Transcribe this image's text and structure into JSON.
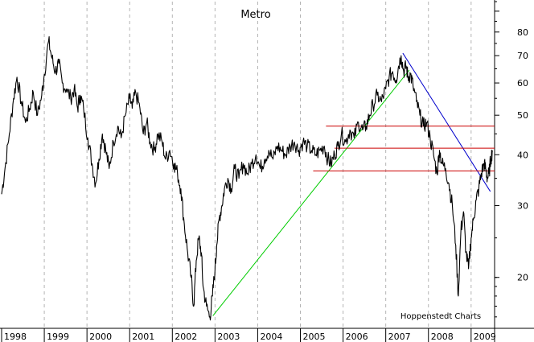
{
  "chart_data": {
    "type": "line",
    "title": "Metro",
    "source": "Hoppenstedt Charts",
    "y_scale": "log",
    "ylim": [
      15,
      95
    ],
    "y_ticks": [
      20,
      30,
      40,
      50,
      60,
      70,
      80
    ],
    "x_range": [
      1998.0,
      2009.55
    ],
    "x_labels": [
      "1998",
      "1999",
      "2000",
      "2001",
      "2002",
      "2003",
      "2004",
      "2005",
      "2006",
      "2007",
      "2008",
      "2009"
    ],
    "grid": {
      "vertical_dashed": true
    },
    "colors": {
      "price": "#000000",
      "uptrend": "#00cc00",
      "downtrend": "#0000cc",
      "resistance": "#cc0000",
      "grid": "#b4b4b4"
    },
    "series": [
      {
        "name": "Metro",
        "x": [
          1998.0,
          1998.08,
          1998.18,
          1998.28,
          1998.36,
          1998.46,
          1998.56,
          1998.66,
          1998.74,
          1998.84,
          1998.94,
          1999.0,
          1999.1,
          1999.18,
          1999.26,
          1999.34,
          1999.42,
          1999.52,
          1999.62,
          1999.7,
          1999.78,
          1999.84,
          1999.92,
          2000.02,
          2000.12,
          2000.2,
          2000.28,
          2000.36,
          2000.44,
          2000.52,
          2000.62,
          2000.72,
          2000.8,
          2000.9,
          2001.0,
          2001.06,
          2001.14,
          2001.24,
          2001.32,
          2001.4,
          2001.48,
          2001.58,
          2001.66,
          2001.76,
          2001.84,
          2001.94,
          2002.04,
          2002.12,
          2002.2,
          2002.28,
          2002.36,
          2002.44,
          2002.5,
          2002.56,
          2002.62,
          2002.68,
          2002.72,
          2002.8,
          2002.88,
          2002.94,
          2003.0,
          2003.04,
          2003.1,
          2003.16,
          2003.22,
          2003.3,
          2003.38,
          2003.46,
          2003.56,
          2003.66,
          2003.76,
          2003.86,
          2003.96,
          2004.06,
          2004.16,
          2004.26,
          2004.36,
          2004.46,
          2004.56,
          2004.66,
          2004.76,
          2004.86,
          2004.96,
          2005.06,
          2005.16,
          2005.26,
          2005.36,
          2005.46,
          2005.56,
          2005.64,
          2005.72,
          2005.8,
          2005.88,
          2005.96,
          2006.06,
          2006.16,
          2006.26,
          2006.36,
          2006.46,
          2006.54,
          2006.62,
          2006.7,
          2006.8,
          2006.9,
          2007.0,
          2007.08,
          2007.16,
          2007.24,
          2007.3,
          2007.36,
          2007.42,
          2007.48,
          2007.52,
          2007.58,
          2007.64,
          2007.72,
          2007.8,
          2007.88,
          2007.96,
          2008.04,
          2008.12,
          2008.2,
          2008.26,
          2008.32,
          2008.4,
          2008.48,
          2008.56,
          2008.64,
          2008.7,
          2008.76,
          2008.82,
          2008.88,
          2008.94,
          2009.0,
          2009.06,
          2009.12,
          2009.18,
          2009.24,
          2009.3,
          2009.34,
          2009.38,
          2009.42,
          2009.46,
          2009.5
        ],
        "y": [
          32,
          37,
          45,
          55,
          62,
          54,
          48,
          52,
          57,
          50,
          56,
          63,
          76,
          69,
          64,
          67,
          60,
          58,
          55,
          58,
          52,
          56,
          52,
          44,
          38,
          34,
          39,
          45,
          41,
          37,
          43,
          47,
          44,
          50,
          55,
          52,
          57,
          52,
          45,
          48,
          43,
          41,
          45,
          43,
          39,
          41,
          38,
          36,
          33,
          27,
          23,
          20,
          17,
          22,
          25,
          23,
          19,
          17,
          16,
          18,
          21,
          24,
          28,
          30,
          33,
          35,
          33,
          37,
          35,
          38,
          36,
          38,
          40,
          37,
          39,
          41,
          39,
          42,
          41,
          40,
          42,
          43,
          41,
          43,
          42,
          41,
          40,
          41,
          42,
          39,
          38,
          40,
          42,
          45,
          43,
          46,
          44,
          48,
          46,
          47,
          50,
          53,
          56,
          54,
          58,
          62,
          64,
          61,
          66,
          70,
          64,
          66,
          62,
          63,
          59,
          54,
          50,
          47,
          48,
          44,
          40,
          36,
          41,
          38,
          37,
          34,
          30,
          24,
          18,
          26,
          29,
          23,
          21,
          25,
          28,
          31,
          33,
          36,
          38,
          37,
          35,
          36,
          39,
          41
        ]
      }
    ],
    "trendlines": [
      {
        "name": "uptrend",
        "x": [
          2002.95,
          2007.55
        ],
        "y": [
          16.1,
          64.5
        ]
      },
      {
        "name": "downtrend",
        "x": [
          2007.4,
          2009.45
        ],
        "y": [
          71,
          32.5
        ]
      }
    ],
    "horizontal_lines": [
      {
        "name": "resistance-47",
        "value": 47,
        "x_from": 2005.6,
        "x_to": 2009.9
      },
      {
        "name": "resistance-41.5",
        "value": 41.5,
        "x_from": 2005.8,
        "x_to": 2009.9
      },
      {
        "name": "resistance-36.5",
        "value": 36.5,
        "x_from": 2005.3,
        "x_to": 2009.9
      }
    ]
  }
}
